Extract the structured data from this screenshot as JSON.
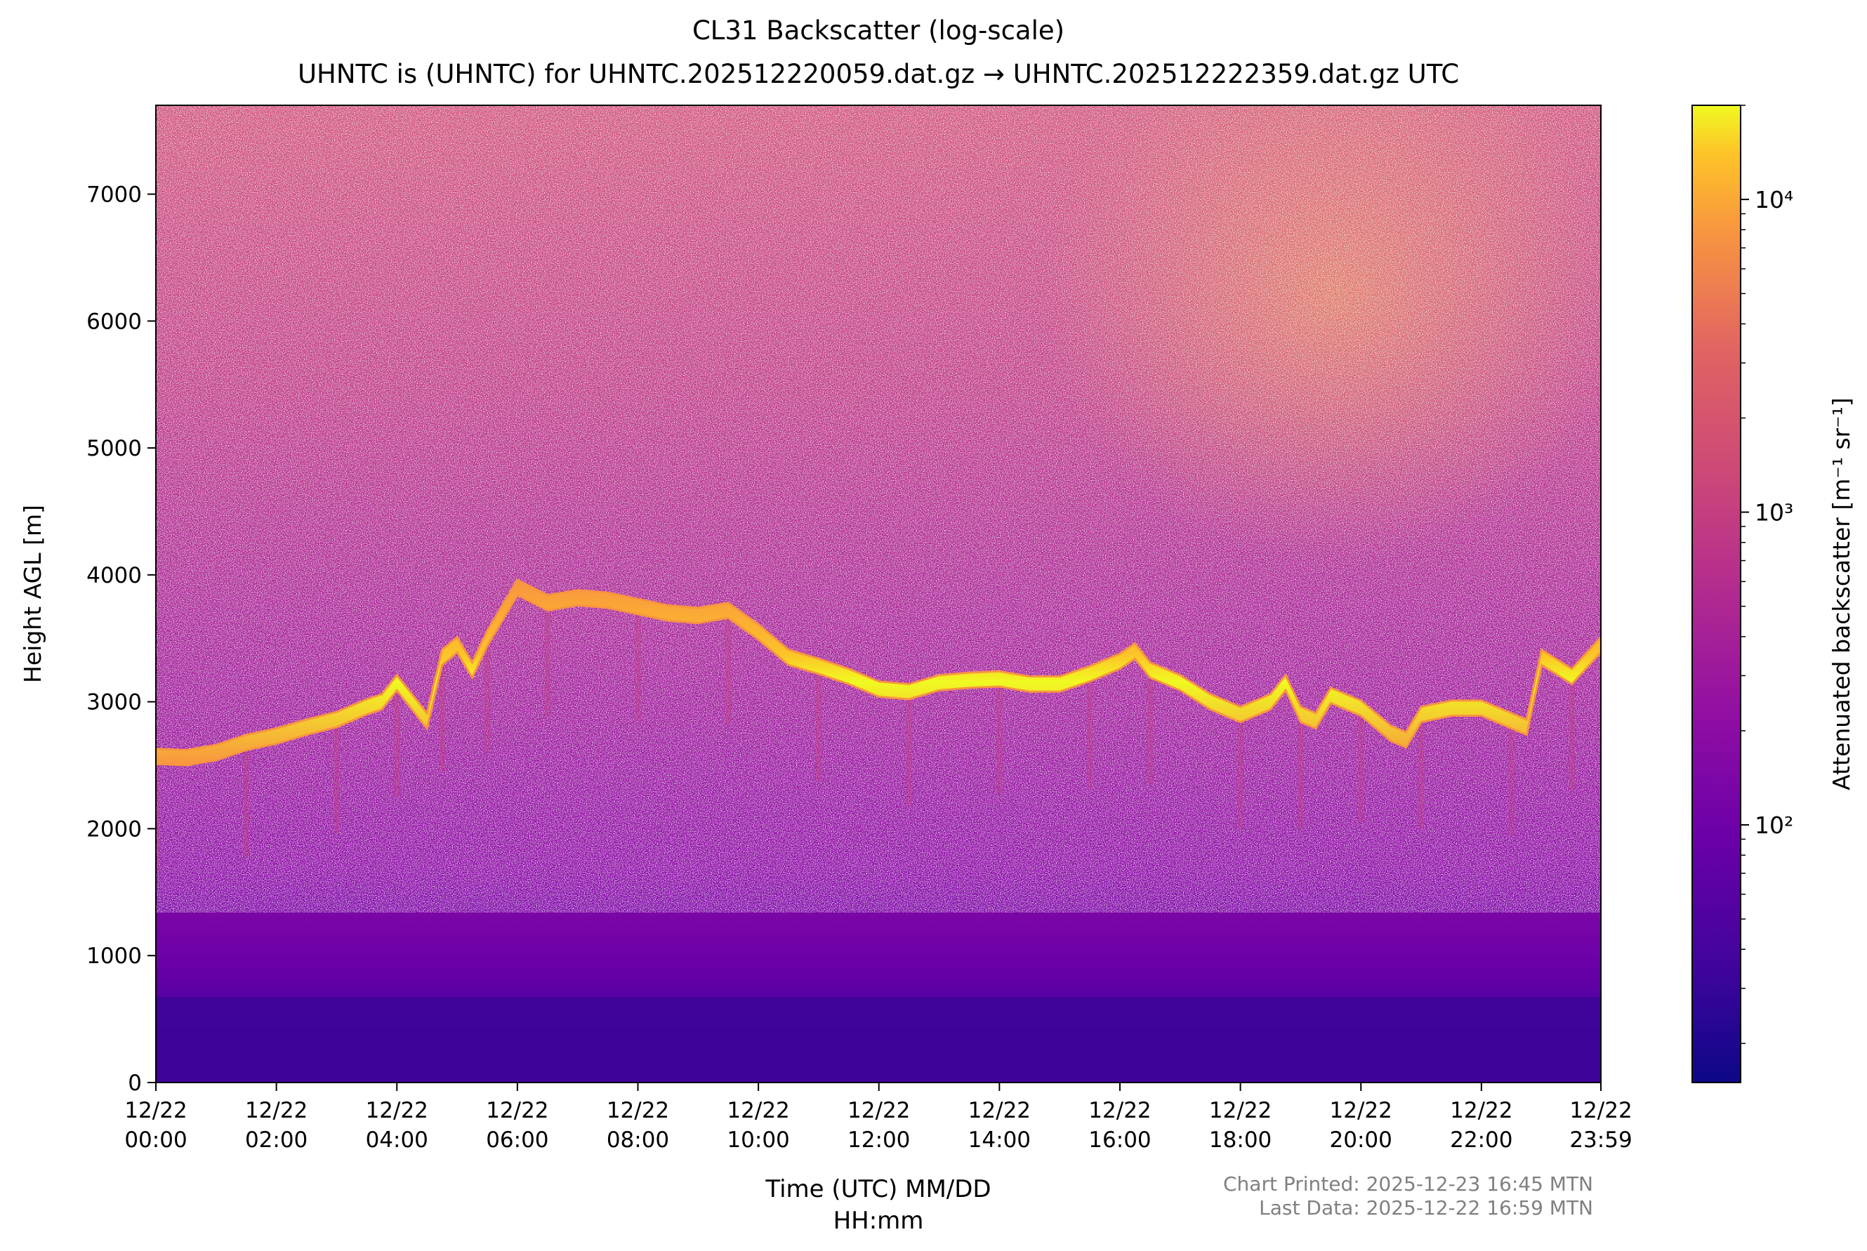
{
  "chart_data": {
    "type": "heatmap",
    "title": "CL31 Backscatter (log-scale)",
    "subtitle": "UHNTC is (UHNTC) for UHNTC.202512220059.dat.gz → UHNTC.202512222359.dat.gz UTC",
    "xlabel_line1": "Time (UTC) MM/DD",
    "xlabel_line2": "HH:mm",
    "ylabel": "Height AGL [m]",
    "colorbar_label": "Attenuated backscatter [m⁻¹ sr⁻¹]",
    "colormap": "plasma",
    "colorbar_scale": "log",
    "colorbar_range": [
      15,
      20000
    ],
    "colorbar_ticks": [
      {
        "value": 100,
        "label": "10²"
      },
      {
        "value": 1000,
        "label": "10³"
      },
      {
        "value": 10000,
        "label": "10⁴"
      }
    ],
    "xlim_hours": [
      0,
      23.983
    ],
    "ylim": [
      0,
      7700
    ],
    "y_ticks": [
      0,
      1000,
      2000,
      3000,
      4000,
      5000,
      6000,
      7000
    ],
    "x_ticks": [
      {
        "hour": 0,
        "date": "12/22",
        "time": "00:00"
      },
      {
        "hour": 2,
        "date": "12/22",
        "time": "02:00"
      },
      {
        "hour": 4,
        "date": "12/22",
        "time": "04:00"
      },
      {
        "hour": 6,
        "date": "12/22",
        "time": "06:00"
      },
      {
        "hour": 8,
        "date": "12/22",
        "time": "08:00"
      },
      {
        "hour": 10,
        "date": "12/22",
        "time": "10:00"
      },
      {
        "hour": 12,
        "date": "12/22",
        "time": "12:00"
      },
      {
        "hour": 14,
        "date": "12/22",
        "time": "14:00"
      },
      {
        "hour": 16,
        "date": "12/22",
        "time": "16:00"
      },
      {
        "hour": 18,
        "date": "12/22",
        "time": "18:00"
      },
      {
        "hour": 20,
        "date": "12/22",
        "time": "20:00"
      },
      {
        "hour": 22,
        "date": "12/22",
        "time": "22:00"
      },
      {
        "hour": 23.983,
        "date": "12/22",
        "time": "23:59"
      }
    ],
    "cloud_layer_height_m": {
      "hours": [
        0,
        0.5,
        1,
        1.5,
        2,
        2.5,
        3,
        3.5,
        3.75,
        4,
        4.25,
        4.5,
        4.75,
        5,
        5.25,
        5.5,
        5.75,
        6,
        6.5,
        7,
        7.5,
        8,
        8.5,
        9,
        9.5,
        10,
        10.5,
        11,
        11.5,
        12,
        12.5,
        13,
        13.5,
        14,
        14.5,
        15,
        15.5,
        16,
        16.25,
        16.5,
        17,
        17.5,
        18,
        18.5,
        18.75,
        19,
        19.25,
        19.5,
        20,
        20.5,
        20.75,
        21,
        21.5,
        22,
        22.5,
        22.75,
        23,
        23.5,
        23.983
      ],
      "height": [
        2570,
        2560,
        2600,
        2680,
        2730,
        2800,
        2860,
        2960,
        3000,
        3150,
        3000,
        2850,
        3350,
        3450,
        3250,
        3500,
        3700,
        3900,
        3780,
        3820,
        3800,
        3750,
        3700,
        3680,
        3720,
        3550,
        3350,
        3280,
        3200,
        3100,
        3080,
        3150,
        3170,
        3180,
        3140,
        3140,
        3220,
        3320,
        3400,
        3250,
        3150,
        3000,
        2900,
        3000,
        3150,
        2900,
        2850,
        3050,
        2950,
        2750,
        2700,
        2900,
        2950,
        2950,
        2850,
        2800,
        3350,
        3200,
        3450
      ],
      "thickness_m": 120
    }
  },
  "footer": {
    "printed": "Chart Printed: 2025-12-23 16:45 MTN",
    "last_data": "Last Data: 2025-12-22 16:59 MTN"
  }
}
